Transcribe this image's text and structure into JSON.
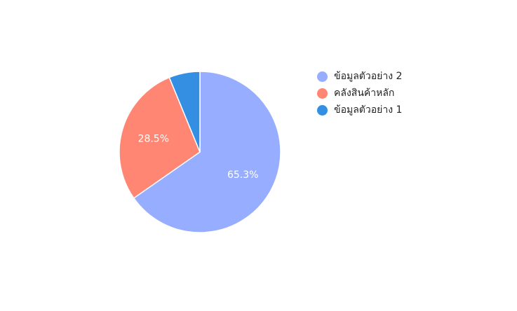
{
  "chart_data": {
    "type": "pie",
    "title": "",
    "slices": [
      {
        "label": "ข้อมูลตัวอย่าง 2",
        "value": 65.3,
        "display": "65.3%",
        "color": "#97adff"
      },
      {
        "label": "คลังสินค้าหลัก",
        "value": 28.5,
        "display": "28.5%",
        "color": "#ff8672"
      },
      {
        "label": "ข้อมูลตัวอย่าง 1",
        "value": 6.2,
        "display": "",
        "color": "#348fe2"
      }
    ],
    "legend_position": "right"
  }
}
